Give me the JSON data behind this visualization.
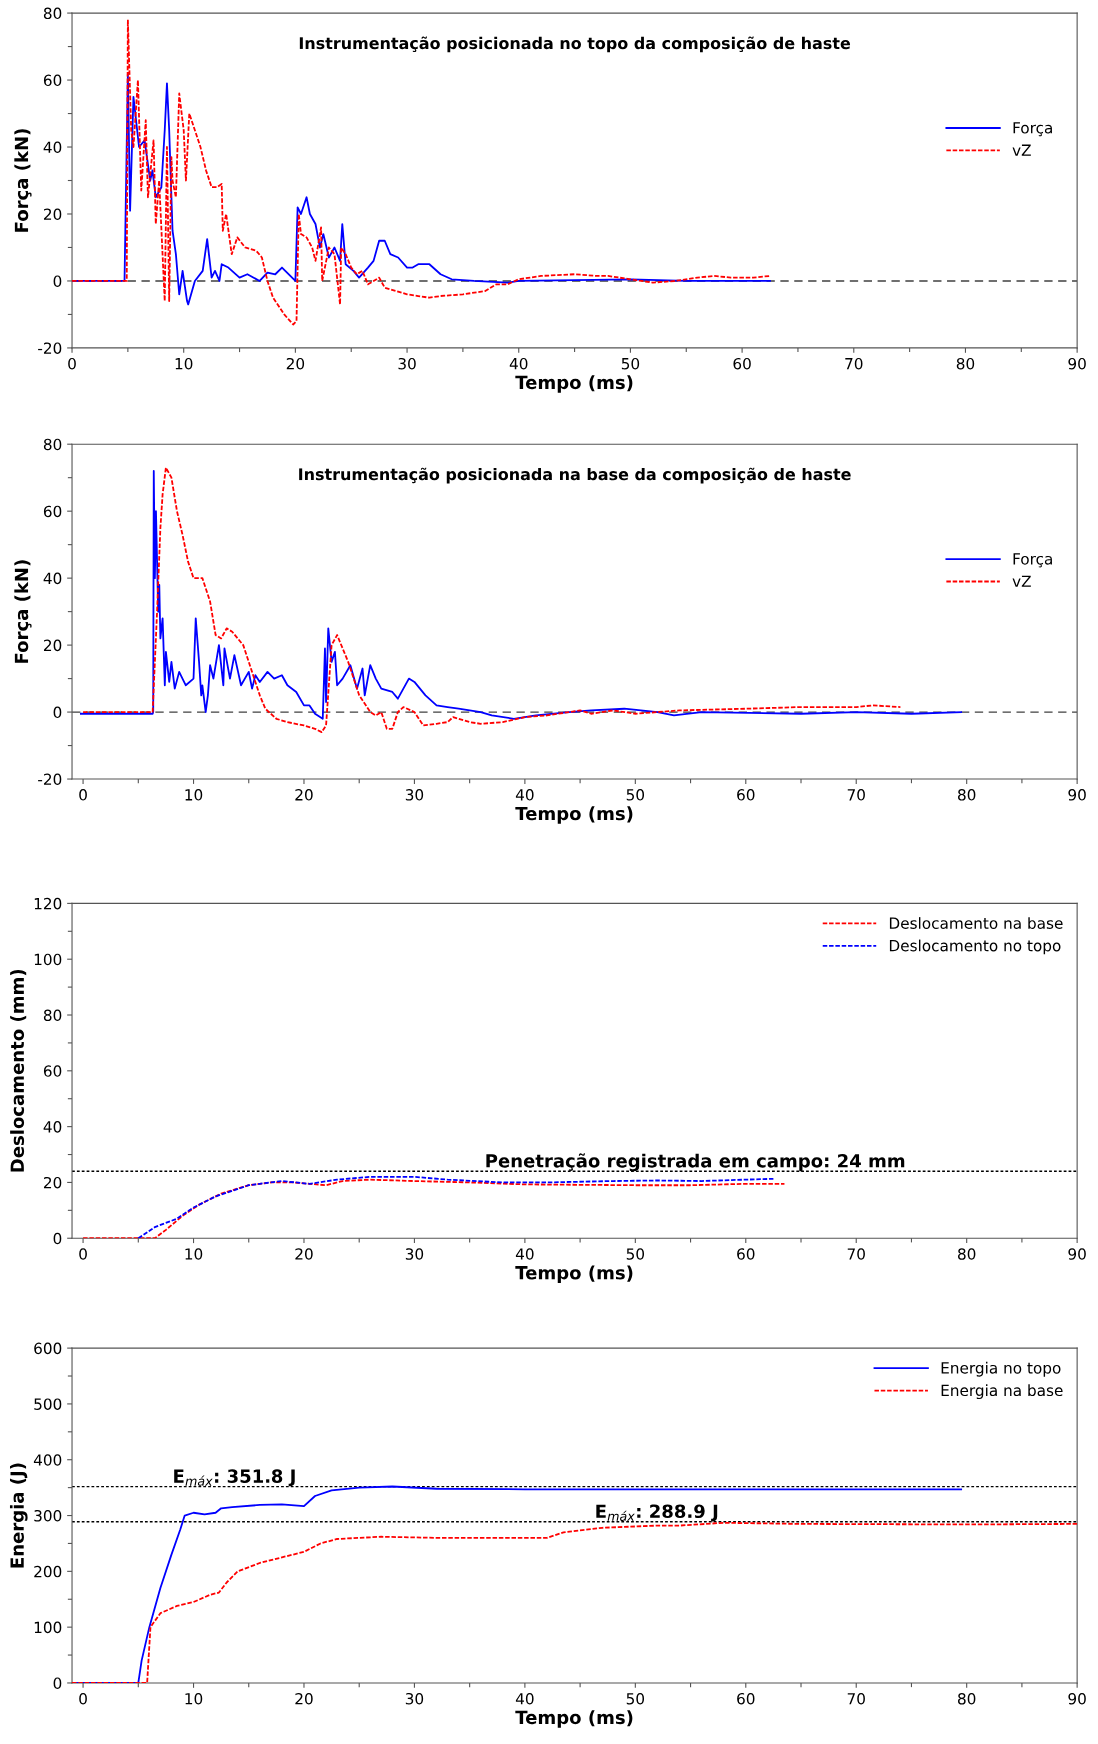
{
  "chart_data": [
    {
      "type": "line",
      "title": "Instrumentação posicionada no topo da composição de haste",
      "xlabel": "Tempo (ms)",
      "ylabel": "Força (kN)",
      "xlim": [
        0,
        90
      ],
      "xticks": [
        0,
        {
          "value": 5,
          "label": null
        },
        10,
        {
          "value": 15,
          "label": null
        },
        20,
        {
          "value": 25,
          "label": null
        },
        30,
        {
          "value": 35,
          "label": null
        },
        40,
        {
          "value": 45,
          "label": null
        },
        50,
        {
          "value": 55,
          "label": null
        },
        60,
        {
          "value": 65,
          "label": null
        },
        70,
        {
          "value": 75,
          "label": null
        },
        80,
        {
          "value": 85,
          "label": null
        },
        90
      ],
      "ylim": [
        -20,
        80
      ],
      "yticks": [
        -20,
        {
          "value": -10,
          "label": null
        },
        0,
        {
          "value": 10,
          "label": null
        },
        20,
        {
          "value": 30,
          "label": null
        },
        40,
        {
          "value": 50,
          "label": null
        },
        60,
        {
          "value": 70,
          "label": null
        },
        80
      ],
      "legend": "right",
      "grid": false,
      "ref_lines": [
        {
          "axis": "y",
          "value": 0,
          "color": "#404040",
          "line_style": "dashed"
        }
      ],
      "series": [
        {
          "name": "Força",
          "color": "#0000ff",
          "line_style": "solid",
          "x": [
            0,
            4.7,
            5.0,
            5.2,
            5.5,
            6,
            6.5,
            7,
            7.2,
            7.5,
            8,
            8.3,
            8.5,
            8.7,
            9,
            9.3,
            9.5,
            9.6,
            9.9,
            10.3,
            10.4,
            11,
            11.7,
            12.1,
            12.5,
            12.8,
            13.2,
            13.4,
            14,
            15,
            15.7,
            16.8,
            17.5,
            18.2,
            18.8,
            20,
            20.2,
            20.5,
            21,
            21.3,
            21.8,
            22.2,
            22.5,
            23,
            23.5,
            24,
            24.2,
            24.5,
            25.2,
            25.7,
            26.5,
            27,
            27.5,
            28,
            28.5,
            29.2,
            30,
            30.5,
            31,
            32,
            33,
            34,
            36,
            39,
            40,
            50,
            55,
            62.5
          ],
          "values": [
            0,
            0,
            62,
            21,
            55,
            40,
            42,
            30,
            33,
            25,
            28,
            45,
            59,
            45,
            15,
            8,
            0,
            -4,
            3,
            -6,
            -7,
            0,
            3,
            12.5,
            1,
            3,
            0,
            5,
            4,
            1,
            2,
            0,
            2.5,
            2,
            4,
            0,
            22,
            20,
            25,
            20,
            17,
            10,
            14,
            7,
            10,
            6,
            17,
            5,
            3,
            1,
            4,
            6,
            12,
            12,
            8,
            7,
            4,
            4,
            5,
            5,
            2,
            0.5,
            0,
            -0.5,
            0,
            0.5,
            0,
            0
          ]
        },
        {
          "name": "vZ",
          "color": "#ff0000",
          "line_style": "dashed",
          "x": [
            0,
            4.9,
            5.0,
            5.3,
            5.5,
            5.9,
            6.2,
            6.6,
            6.8,
            7.3,
            7.5,
            7.8,
            8.3,
            8.5,
            8.7,
            8.9,
            9.0,
            9.3,
            9.6,
            10.0,
            10.2,
            10.5,
            11,
            11.5,
            12,
            12.5,
            13,
            13.4,
            13.5,
            13.8,
            14.3,
            14.8,
            15.5,
            16.5,
            17,
            17.5,
            18,
            19,
            19.8,
            20.1,
            20.3,
            20.5,
            21,
            21.5,
            21.8,
            22.3,
            22.4,
            23,
            23.5,
            24,
            24.1,
            24.5,
            25,
            25.5,
            26,
            26.5,
            27,
            27.5,
            28,
            29,
            30,
            31,
            32,
            33,
            35,
            37,
            38,
            39,
            40,
            42,
            45,
            47,
            48,
            50,
            52,
            54,
            56,
            57.5,
            59,
            61,
            62.5
          ],
          "values": [
            0,
            0,
            78,
            45,
            40,
            60,
            27,
            48,
            25,
            42,
            17,
            30,
            -6,
            40,
            -6,
            37,
            30,
            25,
            56,
            45,
            30,
            50,
            45,
            40,
            33,
            28,
            28,
            29,
            15,
            20,
            8,
            13,
            10,
            9,
            7,
            0,
            -5,
            -10,
            -13,
            -12,
            20,
            14,
            13,
            10,
            6,
            16,
            0,
            10,
            8,
            -7,
            10,
            8,
            4,
            2,
            3,
            -1,
            0,
            1,
            -2,
            -3,
            -4,
            -4.5,
            -5,
            -4.5,
            -4,
            -3,
            -1,
            -1,
            0.5,
            1.5,
            2,
            1.5,
            1.5,
            0.5,
            -0.5,
            0,
            1,
            1.5,
            1,
            1,
            1.5
          ]
        }
      ]
    },
    {
      "type": "line",
      "title": "Instrumentação posicionada na base da composição de haste",
      "xlabel": "Tempo (ms)",
      "ylabel": "Força (kN)",
      "xlim": [
        -1,
        90
      ],
      "xticks": [
        0,
        {
          "value": 5,
          "label": null
        },
        10,
        {
          "value": 15,
          "label": null
        },
        20,
        {
          "value": 25,
          "label": null
        },
        30,
        {
          "value": 35,
          "label": null
        },
        40,
        {
          "value": 45,
          "label": null
        },
        50,
        {
          "value": 55,
          "label": null
        },
        60,
        {
          "value": 65,
          "label": null
        },
        70,
        {
          "value": 75,
          "label": null
        },
        80,
        {
          "value": 85,
          "label": null
        },
        90
      ],
      "ylim": [
        -20,
        80
      ],
      "yticks": [
        -20,
        {
          "value": -10,
          "label": null
        },
        0,
        {
          "value": 10,
          "label": null
        },
        20,
        {
          "value": 30,
          "label": null
        },
        40,
        {
          "value": 50,
          "label": null
        },
        60,
        {
          "value": 70,
          "label": null
        },
        80
      ],
      "legend": "right",
      "grid": false,
      "ref_lines": [
        {
          "axis": "y",
          "value": 0,
          "color": "#404040",
          "line_style": "dashed"
        }
      ],
      "series": [
        {
          "name": "Força",
          "color": "#0000ff",
          "line_style": "solid",
          "x": [
            -0.2,
            6.3,
            6.35,
            6.4,
            6.5,
            6.6,
            6.8,
            6.9,
            7.0,
            7.2,
            7.4,
            7.5,
            7.8,
            8.0,
            8.3,
            8.7,
            9.3,
            10,
            10.2,
            10.5,
            10.7,
            10.8,
            11.1,
            11.3,
            11.5,
            11.8,
            12.3,
            12.7,
            12.8,
            13.3,
            13.7,
            14.3,
            15,
            15.3,
            15.6,
            16,
            16.7,
            17.3,
            18.0,
            18.5,
            19.3,
            20,
            20.5,
            21,
            21.7,
            21.9,
            22,
            22.2,
            22.5,
            22.8,
            23,
            23.5,
            24.2,
            24.8,
            25.3,
            25.5,
            26,
            26.5,
            27,
            28,
            28.5,
            29,
            29.5,
            30,
            31,
            32,
            33,
            34,
            36,
            37,
            39,
            41,
            44,
            46,
            49,
            52,
            53.5,
            56,
            65,
            70,
            75,
            79.5
          ],
          "values": [
            -0.5,
            -0.5,
            0,
            72,
            40,
            60,
            30,
            38,
            22,
            28,
            8,
            18,
            9,
            15,
            7,
            12,
            8,
            10,
            28,
            15,
            5,
            8,
            0,
            5,
            14,
            10,
            20,
            8,
            19,
            10,
            17,
            8,
            12,
            7,
            11,
            9,
            12,
            10,
            11,
            8,
            6,
            2,
            2,
            -0.5,
            -2,
            19,
            3,
            25,
            15,
            18,
            8,
            10,
            14,
            7,
            13,
            5,
            14,
            10,
            7,
            6,
            4,
            7,
            10,
            9,
            5,
            2,
            1.5,
            1,
            0,
            -1,
            -2,
            -1,
            0,
            0.5,
            1,
            0,
            -1,
            0,
            -0.5,
            0,
            -0.5,
            0
          ]
        },
        {
          "name": "vZ",
          "color": "#ff0000",
          "line_style": "dashed",
          "x": [
            0,
            6.3,
            6.7,
            7,
            7.2,
            7.5,
            8,
            8.5,
            9,
            9.5,
            10,
            10.8,
            11.5,
            12,
            12.5,
            13,
            13.5,
            14.5,
            15,
            16,
            16.5,
            17.5,
            18.5,
            20,
            21,
            21.6,
            22,
            22.5,
            23,
            24,
            25,
            26,
            26.5,
            27,
            27.5,
            28,
            28.5,
            29,
            30,
            30.8,
            32,
            33,
            33.5,
            35,
            36,
            38,
            40,
            42,
            44,
            45,
            46,
            48,
            50,
            52,
            54,
            60,
            65,
            70,
            71.5,
            74
          ],
          "values": [
            0,
            0,
            30,
            55,
            65,
            73,
            70,
            60,
            53,
            45,
            40,
            40,
            33,
            23,
            22,
            25,
            24,
            20,
            15,
            5,
            1,
            -2,
            -3,
            -4,
            -5,
            -6,
            -4,
            20,
            23,
            15,
            5,
            0,
            -1,
            0,
            -5,
            -5,
            0,
            1.5,
            0,
            -4,
            -3.5,
            -3,
            -1.5,
            -3,
            -3.5,
            -3,
            -1.5,
            -1,
            0,
            0.5,
            -0.5,
            0.5,
            -0.5,
            0,
            0.5,
            1,
            1.5,
            1.5,
            2,
            1.5
          ]
        }
      ]
    },
    {
      "type": "line",
      "xlabel": "Tempo (ms)",
      "ylabel": "Deslocamento (mm)",
      "xlim": [
        -1,
        90
      ],
      "xticks": [
        0,
        {
          "value": 5,
          "label": null
        },
        10,
        {
          "value": 15,
          "label": null
        },
        20,
        {
          "value": 25,
          "label": null
        },
        30,
        {
          "value": 35,
          "label": null
        },
        40,
        {
          "value": 45,
          "label": null
        },
        50,
        {
          "value": 55,
          "label": null
        },
        60,
        {
          "value": 65,
          "label": null
        },
        70,
        {
          "value": 75,
          "label": null
        },
        80,
        {
          "value": 85,
          "label": null
        },
        90
      ],
      "ylim": [
        0,
        120
      ],
      "yticks": [
        0,
        {
          "value": 10,
          "label": null
        },
        20,
        {
          "value": 30,
          "label": null
        },
        40,
        {
          "value": 50,
          "label": null
        },
        60,
        {
          "value": 70,
          "label": null
        },
        80,
        {
          "value": 90,
          "label": null
        },
        100,
        {
          "value": 110,
          "label": null
        },
        120
      ],
      "legend": "top right",
      "grid": false,
      "ref_lines": [
        {
          "axis": "y",
          "value": 24,
          "label": "Penetração registrada em campo: 24 mm",
          "color": "#000000",
          "line_style": "dotted"
        }
      ],
      "series": [
        {
          "name": "Deslocamento na base",
          "color": "#ff0000",
          "line_style": "dashed",
          "x": [
            0,
            6.5,
            7.5,
            9,
            10.5,
            12.5,
            15,
            17,
            19,
            20.5,
            22,
            23.5,
            26,
            30,
            35,
            40,
            50,
            55,
            60,
            63.5
          ],
          "values": [
            0,
            0,
            3,
            8,
            12,
            16,
            19,
            20,
            20,
            19.5,
            19,
            20.5,
            21,
            20.5,
            20,
            19.3,
            19,
            19,
            19.5,
            19.5
          ]
        },
        {
          "name": "Deslocamento no topo",
          "color": "#0000ff",
          "line_style": "dashed",
          "x": [
            5,
            6.5,
            8.5,
            10,
            12,
            15,
            18,
            20.5,
            23,
            26,
            30,
            33,
            38,
            42,
            48,
            52,
            56,
            60,
            62.5
          ],
          "values": [
            0,
            4,
            7,
            11,
            15,
            19,
            20.5,
            19.5,
            21,
            22,
            22,
            21,
            20,
            20,
            20.5,
            20.7,
            20.5,
            21,
            21.3
          ]
        }
      ]
    },
    {
      "type": "line",
      "xlabel": "Tempo (ms)",
      "ylabel": "Energia (J)",
      "xlim": [
        -1,
        90
      ],
      "xticks": [
        0,
        {
          "value": 5,
          "label": null
        },
        10,
        {
          "value": 15,
          "label": null
        },
        20,
        {
          "value": 25,
          "label": null
        },
        30,
        {
          "value": 35,
          "label": null
        },
        40,
        {
          "value": 45,
          "label": null
        },
        50,
        {
          "value": 55,
          "label": null
        },
        60,
        {
          "value": 65,
          "label": null
        },
        70,
        {
          "value": 75,
          "label": null
        },
        80,
        {
          "value": 85,
          "label": null
        },
        90
      ],
      "ylim": [
        0,
        600
      ],
      "yticks": [
        0,
        {
          "value": 50,
          "label": null
        },
        100,
        {
          "value": 150,
          "label": null
        },
        200,
        {
          "value": 250,
          "label": null
        },
        300,
        {
          "value": 350,
          "label": null
        },
        400,
        {
          "value": 450,
          "label": null
        },
        500,
        {
          "value": 550,
          "label": null
        },
        600
      ],
      "legend": "top right",
      "grid": false,
      "ref_lines": [
        {
          "axis": "y",
          "value": 351.8,
          "label": "E$_{máx}$: 351.8 J",
          "color": "#000000",
          "line_style": "dotted"
        },
        {
          "axis": "y",
          "value": 288.9,
          "label": "E$_{máx}$: 288.9 J",
          "color": "#000000",
          "line_style": "dotted"
        }
      ],
      "series": [
        {
          "name": "Energia no topo",
          "color": "#0000ff",
          "line_style": "solid",
          "x": [
            -1,
            5,
            5.3,
            6,
            7,
            8,
            8.8,
            9.2,
            10,
            11,
            12,
            12.5,
            13.5,
            16,
            18,
            20,
            21,
            22.5,
            25,
            28,
            32,
            40,
            60,
            79.5
          ],
          "values": [
            0,
            0,
            40,
            100,
            170,
            230,
            275,
            300,
            305,
            302,
            305,
            313,
            315,
            319,
            320,
            317,
            335,
            345,
            350,
            352,
            348,
            347,
            347,
            347
          ]
        },
        {
          "name": "Energia na base",
          "color": "#ff0000",
          "line_style": "dashed",
          "x": [
            -1,
            5.8,
            6.1,
            7,
            8.5,
            10,
            11.5,
            12.3,
            13,
            14,
            16,
            18,
            20,
            21.5,
            23,
            27,
            32,
            42,
            43.5,
            47,
            52,
            54,
            58,
            65,
            80,
            90
          ],
          "values": [
            0,
            0,
            100,
            125,
            138,
            145,
            158,
            162,
            180,
            200,
            215,
            225,
            235,
            250,
            258,
            262,
            260,
            260,
            270,
            278,
            282,
            282,
            287,
            285,
            284,
            285
          ]
        }
      ]
    }
  ]
}
